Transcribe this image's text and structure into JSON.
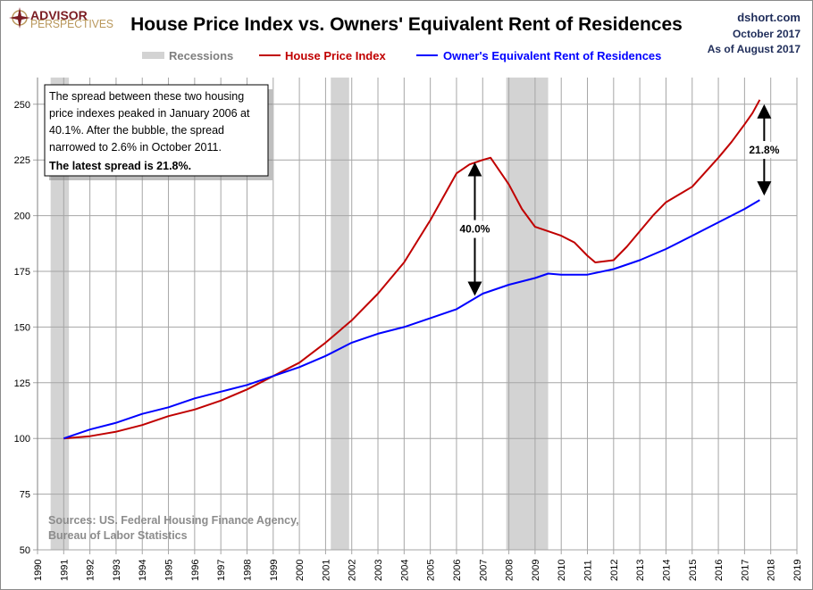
{
  "header": {
    "logo_line1": "ADVISOR",
    "logo_line2": "PERSPECTIVES",
    "site": "dshort.com",
    "date": "October 2017",
    "as_of": "As of August 2017"
  },
  "colors": {
    "hpi": "#c00000",
    "oer": "#0000ff",
    "recession": "#d3d3d3",
    "grid": "#a6a6a6",
    "logo_red": "#7b1c22",
    "logo_gold": "#b9975b"
  },
  "chart_data": {
    "type": "line",
    "title": "House Price Index vs. Owners' Equivalent Rent of Residences",
    "legend": {
      "placement": "top",
      "recession_label": "Recessions"
    },
    "xlim": [
      1990,
      2019
    ],
    "ylim": [
      50,
      262
    ],
    "x_ticks": [
      1990,
      1991,
      1992,
      1993,
      1994,
      1995,
      1996,
      1997,
      1998,
      1999,
      2000,
      2001,
      2002,
      2003,
      2004,
      2005,
      2006,
      2007,
      2008,
      2009,
      2010,
      2011,
      2012,
      2013,
      2014,
      2015,
      2016,
      2017,
      2018,
      2019
    ],
    "y_ticks": [
      50,
      75,
      100,
      125,
      150,
      175,
      200,
      225,
      250
    ],
    "grid": true,
    "recessions": [
      [
        1990.5,
        1991.2
      ],
      [
        2001.2,
        2001.9
      ],
      [
        2007.9,
        2009.5
      ]
    ],
    "series": [
      {
        "name": "House Price Index",
        "color": "#c00000",
        "x": [
          1991,
          1992,
          1993,
          1994,
          1995,
          1996,
          1997,
          1998,
          1999,
          2000,
          2001,
          2002,
          2003,
          2004,
          2005,
          2006,
          2006.5,
          2007,
          2007.3,
          2008,
          2008.5,
          2009,
          2009.5,
          2010,
          2010.5,
          2011,
          2011.3,
          2012,
          2012.5,
          2013,
          2013.5,
          2014,
          2015,
          2016,
          2016.5,
          2017,
          2017.3,
          2017.58
        ],
        "y": [
          100,
          101,
          103,
          106,
          110,
          113,
          117,
          122,
          128,
          134,
          143,
          153,
          165,
          179,
          198,
          219,
          223,
          225,
          226,
          214,
          203,
          195,
          193,
          191,
          188,
          182,
          179,
          180,
          186,
          193,
          200,
          206,
          213,
          226,
          233,
          241,
          246,
          252
        ]
      },
      {
        "name": "Owner's Equivalent Rent of Residences",
        "color": "#0000ff",
        "x": [
          1991,
          1992,
          1993,
          1994,
          1995,
          1996,
          1997,
          1998,
          1999,
          2000,
          2001,
          2002,
          2003,
          2004,
          2005,
          2006,
          2007,
          2008,
          2009,
          2009.5,
          2010,
          2011,
          2012,
          2013,
          2014,
          2015,
          2016,
          2017,
          2017.58
        ],
        "y": [
          100,
          104,
          107,
          111,
          114,
          118,
          121,
          124,
          128,
          132,
          137,
          143,
          147,
          150,
          154,
          158,
          165,
          169,
          172,
          174,
          173.5,
          173.5,
          176,
          180,
          185,
          191,
          197,
          203,
          207
        ]
      }
    ],
    "annotations": [
      {
        "label": "40.0%",
        "x": 2006.7,
        "from": 224,
        "to": 164
      },
      {
        "label": "21.8%",
        "x": 2017.75,
        "from": 250,
        "to": 209
      }
    ],
    "note": {
      "lines": [
        "The spread between these two housing",
        "price indexes peaked in January 2006 at",
        "40.1%. After the bubble, the spread",
        "narrowed to 2.6%  in October 2011."
      ],
      "bold": "The latest spread is 21.8%."
    },
    "sources": [
      "Sources: US. Federal Housing Finance Agency,",
      "Bureau of Labor Statistics"
    ]
  }
}
